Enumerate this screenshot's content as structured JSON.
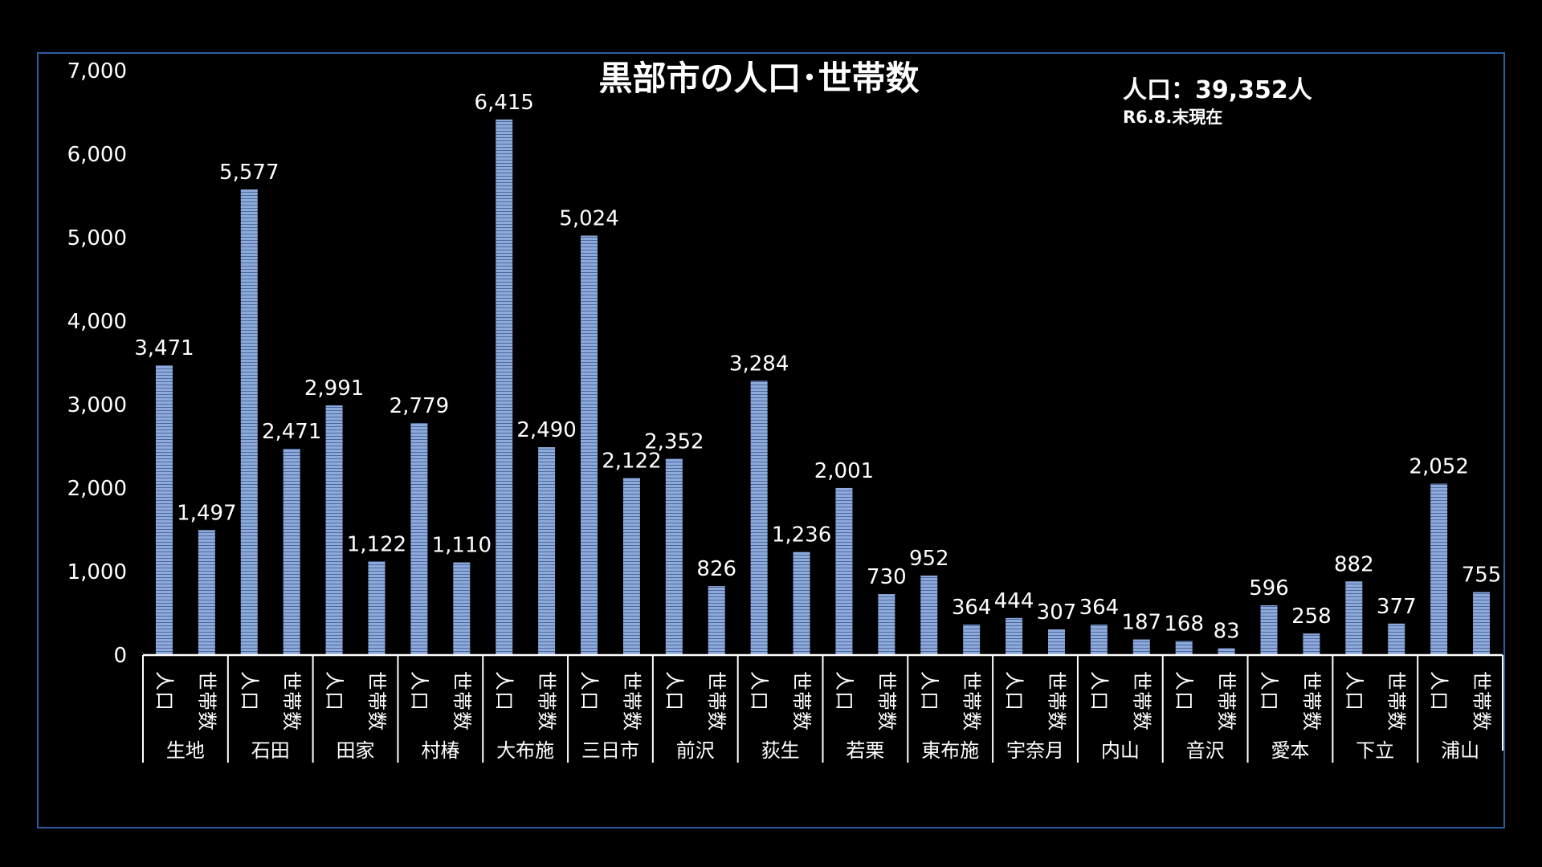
{
  "chart_data": {
    "type": "bar",
    "title": "黒部市の人口･世帯数",
    "info": {
      "total": "人口：39,352人",
      "date": "R6.8.末現在"
    },
    "ylim": [
      0,
      7000
    ],
    "yticks": [
      "0",
      "1,000",
      "2,000",
      "3,000",
      "4,000",
      "5,000",
      "6,000",
      "7,000"
    ],
    "sub_labels": [
      "人口",
      "世帯数"
    ],
    "bar_color": "#8eaadb",
    "categories": [
      "生地",
      "石田",
      "田家",
      "村椿",
      "大布施",
      "三日市",
      "前沢",
      "荻生",
      "若栗",
      "東布施",
      "宇奈月",
      "内山",
      "音沢",
      "愛本",
      "下立",
      "浦山"
    ],
    "series": [
      {
        "name": "人口",
        "values": [
          3471,
          5577,
          2991,
          2779,
          6415,
          5024,
          2352,
          3284,
          2001,
          952,
          444,
          364,
          168,
          596,
          882,
          2052
        ],
        "labels": [
          "3,471",
          "5,577",
          "2,991",
          "2,779",
          "6,415",
          "5,024",
          "2,352",
          "3,284",
          "2,001",
          "952",
          "444",
          "364",
          "168",
          "596",
          "882",
          "2,052"
        ]
      },
      {
        "name": "世帯数",
        "values": [
          1497,
          2471,
          1122,
          1110,
          2490,
          2122,
          826,
          1236,
          730,
          364,
          307,
          187,
          83,
          258,
          377,
          755
        ],
        "labels": [
          "1,497",
          "2,471",
          "1,122",
          "1,110",
          "2,490",
          "2,122",
          "826",
          "1,236",
          "730",
          "364",
          "307",
          "187",
          "83",
          "258",
          "377",
          "755"
        ]
      }
    ]
  }
}
